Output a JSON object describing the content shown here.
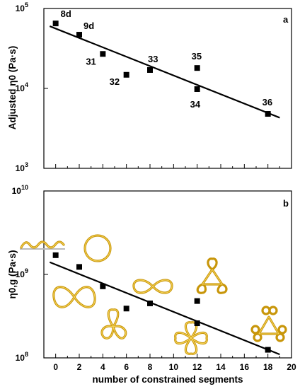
{
  "chart_data": [
    {
      "panel": "a",
      "type": "scatter",
      "yscale": "log",
      "xlim": [
        -1,
        20
      ],
      "ylim": [
        1000,
        100000
      ],
      "ylabel": "Adjusted η0 (Pa·s)",
      "xlabel": "",
      "y_ticks": [
        {
          "value": 1000,
          "base": "10",
          "exp": "3"
        },
        {
          "value": 10000,
          "base": "10",
          "exp": "4"
        },
        {
          "value": 100000,
          "base": "10",
          "exp": "5"
        }
      ],
      "points": [
        {
          "label": "8d",
          "x": 0,
          "y": 65000
        },
        {
          "label": "9d",
          "x": 2,
          "y": 47000
        },
        {
          "label": "31",
          "x": 4,
          "y": 27000
        },
        {
          "label": "32",
          "x": 6,
          "y": 14800
        },
        {
          "label": "33",
          "x": 8,
          "y": 17000
        },
        {
          "label": "35",
          "x": 12,
          "y": 18000
        },
        {
          "label": "34",
          "x": 12,
          "y": 9800
        },
        {
          "label": "36",
          "x": 18,
          "y": 4800
        }
      ],
      "fit": {
        "x": [
          -0.5,
          19
        ],
        "y": [
          60000,
          4300
        ]
      }
    },
    {
      "panel": "b",
      "type": "scatter",
      "yscale": "log",
      "xlim": [
        -1,
        20
      ],
      "ylim": [
        100000000,
        10000000000
      ],
      "ylabel": "η0,g (Pa·s)",
      "xlabel": "number of constrained segments",
      "x_ticks": [
        "0",
        "2",
        "4",
        "6",
        "8",
        "10",
        "12",
        "14",
        "16",
        "18",
        "20"
      ],
      "y_ticks": [
        {
          "value": 100000000,
          "base": "10",
          "exp": "8"
        },
        {
          "value": 1000000000,
          "base": "10",
          "exp": "9"
        },
        {
          "value": 10000000000,
          "base": "10",
          "exp": "10"
        }
      ],
      "points": [
        {
          "x": 0,
          "y": 1700000000
        },
        {
          "x": 2,
          "y": 1230000000
        },
        {
          "x": 4,
          "y": 720000000
        },
        {
          "x": 6,
          "y": 390000000
        },
        {
          "x": 8,
          "y": 450000000
        },
        {
          "x": 12,
          "y": 480000000
        },
        {
          "x": 12,
          "y": 260000000
        },
        {
          "x": 18,
          "y": 125000000
        }
      ],
      "fit": {
        "x": [
          -0.5,
          19
        ],
        "y": [
          1400000000,
          110000000
        ]
      }
    }
  ]
}
